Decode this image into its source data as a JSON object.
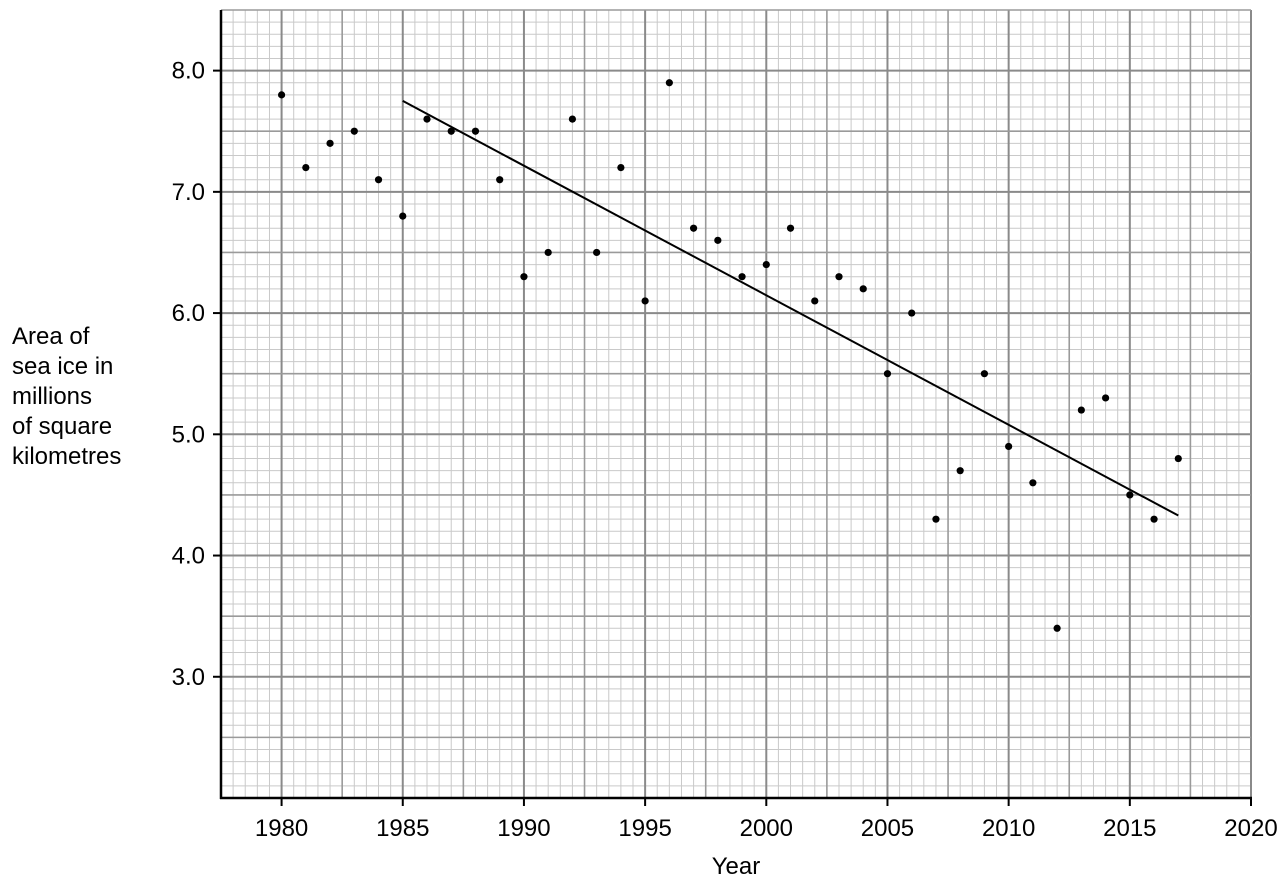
{
  "chart_data": {
    "type": "scatter",
    "title": "",
    "xlabel": "Year",
    "ylabel_lines": [
      "Area of",
      "sea ice in",
      "millions",
      "of square",
      "kilometres"
    ],
    "xlim": [
      1977.5,
      2020
    ],
    "ylim": [
      2.0,
      8.5
    ],
    "x_ticks": [
      1980,
      1985,
      1990,
      1995,
      2000,
      2005,
      2010,
      2015,
      2020
    ],
    "x_tick_labels": [
      "1980",
      "1985",
      "1990",
      "1995",
      "2000",
      "2005",
      "2010",
      "2015",
      "2020"
    ],
    "y_ticks": [
      3.0,
      4.0,
      5.0,
      6.0,
      7.0,
      8.0
    ],
    "y_tick_labels": [
      "3.0",
      "4.0",
      "5.0",
      "6.0",
      "7.0",
      "8.0"
    ],
    "grid": true,
    "points": [
      {
        "x": 1980,
        "y": 7.8
      },
      {
        "x": 1981,
        "y": 7.2
      },
      {
        "x": 1982,
        "y": 7.4
      },
      {
        "x": 1983,
        "y": 7.5
      },
      {
        "x": 1984,
        "y": 7.1
      },
      {
        "x": 1985,
        "y": 6.8
      },
      {
        "x": 1986,
        "y": 7.6
      },
      {
        "x": 1987,
        "y": 7.5
      },
      {
        "x": 1988,
        "y": 7.5
      },
      {
        "x": 1989,
        "y": 7.1
      },
      {
        "x": 1990,
        "y": 6.3
      },
      {
        "x": 1991,
        "y": 6.5
      },
      {
        "x": 1992,
        "y": 7.6
      },
      {
        "x": 1993,
        "y": 6.5
      },
      {
        "x": 1994,
        "y": 7.2
      },
      {
        "x": 1995,
        "y": 6.1
      },
      {
        "x": 1996,
        "y": 7.9
      },
      {
        "x": 1997,
        "y": 6.7
      },
      {
        "x": 1998,
        "y": 6.6
      },
      {
        "x": 1999,
        "y": 6.3
      },
      {
        "x": 2000,
        "y": 6.4
      },
      {
        "x": 2001,
        "y": 6.7
      },
      {
        "x": 2002,
        "y": 6.1
      },
      {
        "x": 2003,
        "y": 6.3
      },
      {
        "x": 2004,
        "y": 6.2
      },
      {
        "x": 2005,
        "y": 5.5
      },
      {
        "x": 2006,
        "y": 6.0
      },
      {
        "x": 2007,
        "y": 4.3
      },
      {
        "x": 2008,
        "y": 4.7
      },
      {
        "x": 2009,
        "y": 5.5
      },
      {
        "x": 2010,
        "y": 4.9
      },
      {
        "x": 2011,
        "y": 4.6
      },
      {
        "x": 2012,
        "y": 3.4
      },
      {
        "x": 2013,
        "y": 5.2
      },
      {
        "x": 2014,
        "y": 5.3
      },
      {
        "x": 2015,
        "y": 4.5
      },
      {
        "x": 2016,
        "y": 4.3
      },
      {
        "x": 2017,
        "y": 4.8
      }
    ],
    "trend_line": {
      "x": [
        1985,
        2017
      ],
      "y": [
        7.75,
        4.33
      ]
    }
  }
}
